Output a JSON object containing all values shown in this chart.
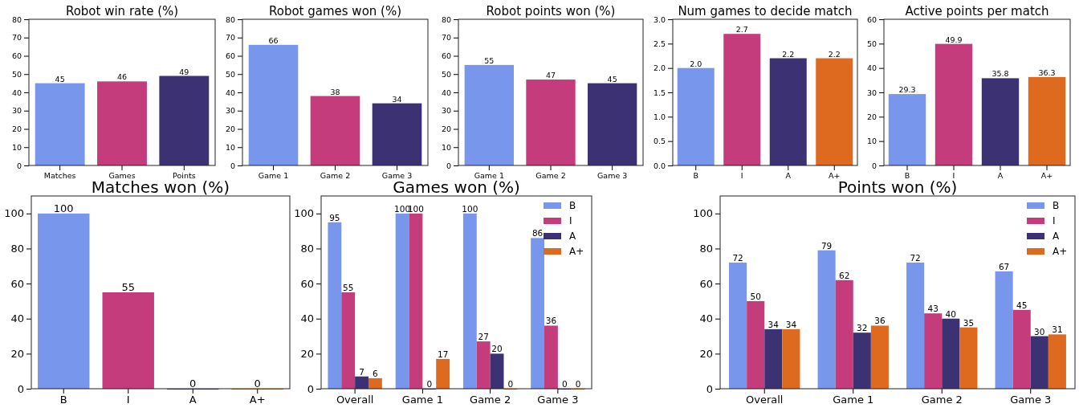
{
  "chart_data": [
    {
      "type": "bar",
      "title": "Robot win rate (%)",
      "categories": [
        "Matches",
        "Games",
        "Points"
      ],
      "values": [
        45,
        46,
        49
      ],
      "colors": [
        "#7896eb",
        "#c43c7c",
        "#3c3173"
      ],
      "ylim": [
        0,
        80
      ],
      "yticks": [
        0,
        10,
        20,
        30,
        40,
        50,
        60,
        70,
        80
      ],
      "data_labels": true
    },
    {
      "type": "bar",
      "title": "Robot games won (%)",
      "categories": [
        "Game 1",
        "Game 2",
        "Game 3"
      ],
      "values": [
        66,
        38,
        34
      ],
      "colors": [
        "#7896eb",
        "#c43c7c",
        "#3c3173"
      ],
      "ylim": [
        0,
        80
      ],
      "yticks": [
        0,
        10,
        20,
        30,
        40,
        50,
        60,
        70,
        80
      ],
      "data_labels": true
    },
    {
      "type": "bar",
      "title": "Robot points won (%)",
      "categories": [
        "Game 1",
        "Game 2",
        "Game 3"
      ],
      "values": [
        55,
        47,
        45
      ],
      "colors": [
        "#7896eb",
        "#c43c7c",
        "#3c3173"
      ],
      "ylim": [
        0,
        80
      ],
      "yticks": [
        0,
        10,
        20,
        30,
        40,
        50,
        60,
        70,
        80
      ],
      "data_labels": true
    },
    {
      "type": "bar",
      "title": "Num games to decide match",
      "categories": [
        "B",
        "I",
        "A",
        "A+"
      ],
      "values": [
        2.0,
        2.7,
        2.2,
        2.2
      ],
      "value_labels": [
        "2.0",
        "2.7",
        "2.2",
        "2.2"
      ],
      "colors": [
        "#7896eb",
        "#c43c7c",
        "#3c3173",
        "#de6a20"
      ],
      "ylim": [
        0,
        3
      ],
      "yticks": [
        {
          "value": 0,
          "label": "0.0"
        },
        {
          "value": 0.5,
          "label": "0.5"
        },
        {
          "value": 1,
          "label": "1.0"
        },
        {
          "value": 1.5,
          "label": "1.5"
        },
        {
          "value": 2,
          "label": "2.0"
        },
        {
          "value": 2.5,
          "label": "2.5"
        },
        {
          "value": 3,
          "label": "3.0"
        }
      ]
    },
    {
      "type": "bar",
      "title": "Active points per match",
      "categories": [
        "B",
        "I",
        "A",
        "A+"
      ],
      "values": [
        29.3,
        49.9,
        35.8,
        36.3
      ],
      "colors": [
        "#7896eb",
        "#c43c7c",
        "#3c3173",
        "#de6a20"
      ],
      "ylim": [
        0,
        60
      ],
      "yticks": [
        0,
        10,
        20,
        30,
        40,
        50,
        60
      ],
      "data_labels": true
    },
    {
      "type": "bar",
      "title": "Matches won (%)",
      "categories": [
        "B",
        "I",
        "A",
        "A+"
      ],
      "values": [
        100,
        55,
        0,
        0
      ],
      "colors": [
        "#7896eb",
        "#c43c7c",
        "#3c3173",
        "#de6a20"
      ],
      "ylim": [
        0,
        110
      ],
      "yticks": [
        0,
        20,
        40,
        60,
        80,
        100
      ],
      "data_labels": true
    },
    {
      "type": "bar",
      "title": "Games won (%)",
      "categories": [
        "Overall",
        "Game 1",
        "Game 2",
        "Game 3"
      ],
      "series": [
        {
          "name": "B",
          "color": "#7896eb",
          "values": [
            95,
            100,
            100,
            86
          ]
        },
        {
          "name": "I",
          "color": "#c43c7c",
          "values": [
            55,
            100,
            27,
            36
          ]
        },
        {
          "name": "A",
          "color": "#3c3173",
          "values": [
            7,
            0,
            20,
            0
          ]
        },
        {
          "name": "A+",
          "color": "#de6a20",
          "values": [
            6,
            17,
            0,
            0
          ]
        }
      ],
      "ylim": [
        0,
        110
      ],
      "yticks": [
        0,
        20,
        40,
        60,
        80,
        100
      ],
      "data_labels": true,
      "legend": "top right"
    },
    {
      "type": "bar",
      "title": "Points won (%)",
      "categories": [
        "Overall",
        "Game 1",
        "Game 2",
        "Game 3"
      ],
      "series": [
        {
          "name": "B",
          "color": "#7896eb",
          "values": [
            72,
            79,
            72,
            67
          ]
        },
        {
          "name": "I",
          "color": "#c43c7c",
          "values": [
            50,
            62,
            43,
            45
          ]
        },
        {
          "name": "A",
          "color": "#3c3173",
          "values": [
            34,
            32,
            40,
            30
          ]
        },
        {
          "name": "A+",
          "color": "#de6a20",
          "values": [
            34,
            36,
            35,
            31
          ]
        }
      ],
      "ylim": [
        0,
        110
      ],
      "yticks": [
        0,
        20,
        40,
        60,
        80,
        100
      ],
      "data_labels": true,
      "legend": "top right"
    }
  ]
}
